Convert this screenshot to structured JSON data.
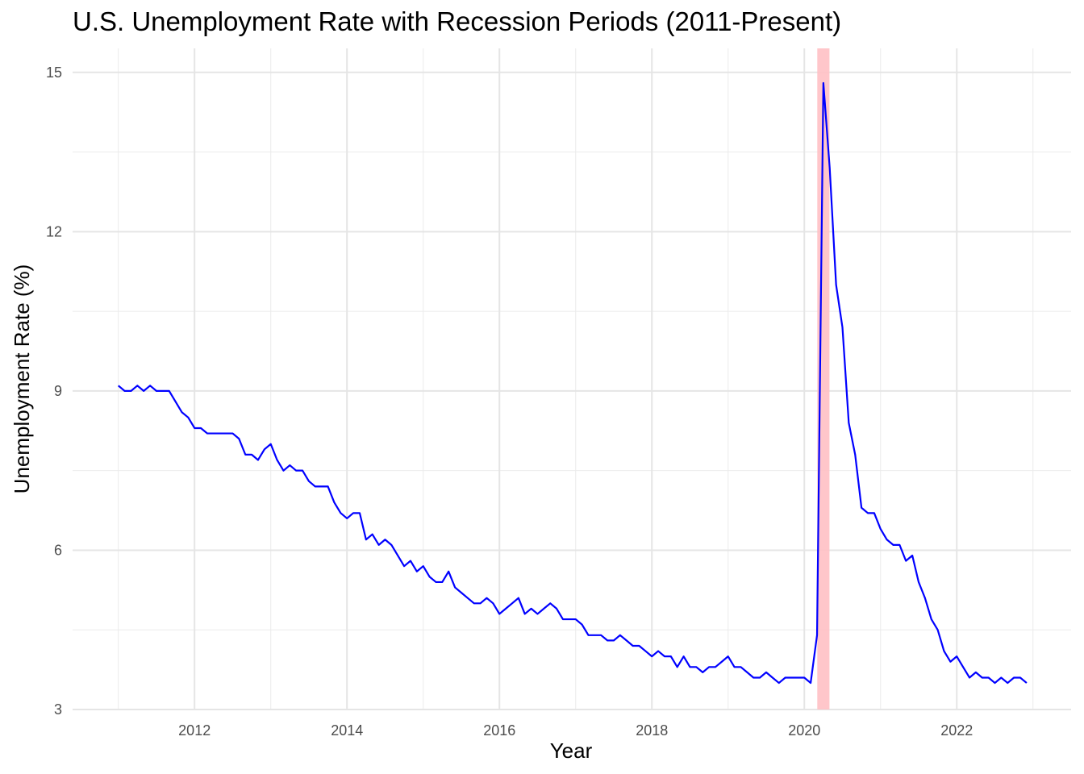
{
  "chart_data": {
    "type": "line",
    "title": "U.S. Unemployment Rate with Recession Periods (2011-Present)",
    "xlabel": "Year",
    "ylabel": "Unemployment Rate (%)",
    "xlim": [
      2010.4,
      2023.5
    ],
    "ylim": [
      3,
      15.3
    ],
    "x_ticks": [
      "2012",
      "2014",
      "2016",
      "2020",
      "2018",
      "2022"
    ],
    "y_ticks": [
      "3",
      "6",
      "9",
      "12",
      "15"
    ],
    "grid": true,
    "line_color": "#0000ff",
    "recession_color": "#ffc0c4",
    "recession_periods": [
      {
        "start": 2020.17,
        "end": 2020.33
      }
    ],
    "series": [
      {
        "x": [
          2011.0,
          2011.083,
          2011.167,
          2011.25,
          2011.333,
          2011.417,
          2011.5,
          2011.583,
          2011.667,
          2011.75,
          2011.833,
          2011.917,
          2012.0,
          2012.083,
          2012.167,
          2012.25,
          2012.333,
          2012.417,
          2012.5,
          2012.583,
          2012.667,
          2012.75,
          2012.833,
          2012.917,
          2013.0,
          2013.083,
          2013.167,
          2013.25,
          2013.333,
          2013.417,
          2013.5,
          2013.583,
          2013.667,
          2013.75,
          2013.833,
          2013.917,
          2014.0,
          2014.083,
          2014.167,
          2014.25,
          2014.333,
          2014.417,
          2014.5,
          2014.583,
          2014.667,
          2014.75,
          2014.833,
          2014.917,
          2015.0,
          2015.083,
          2015.167,
          2015.25,
          2015.333,
          2015.417,
          2015.5,
          2015.583,
          2015.667,
          2015.75,
          2015.833,
          2015.917,
          2016.0,
          2016.083,
          2016.167,
          2016.25,
          2016.333,
          2016.417,
          2016.5,
          2016.583,
          2016.667,
          2016.75,
          2016.833,
          2016.917,
          2017.0,
          2017.083,
          2017.167,
          2017.25,
          2017.333,
          2017.417,
          2017.5,
          2017.583,
          2017.667,
          2017.75,
          2017.833,
          2017.917,
          2018.0,
          2018.083,
          2018.167,
          2018.25,
          2018.333,
          2018.417,
          2018.5,
          2018.583,
          2018.667,
          2018.75,
          2018.833,
          2018.917,
          2019.0,
          2019.083,
          2019.167,
          2019.25,
          2019.333,
          2019.417,
          2019.5,
          2019.583,
          2019.667,
          2019.75,
          2019.833,
          2019.917,
          2020.0,
          2020.083,
          2020.167,
          2020.25,
          2020.333,
          2020.417,
          2020.5,
          2020.583,
          2020.667,
          2020.75,
          2020.833,
          2020.917,
          2021.0,
          2021.083,
          2021.167,
          2021.25,
          2021.333,
          2021.417,
          2021.5,
          2021.583,
          2021.667,
          2021.75,
          2021.833,
          2021.917,
          2022.0,
          2022.083,
          2022.167,
          2022.25,
          2022.333,
          2022.417,
          2022.5,
          2022.583,
          2022.667,
          2022.75,
          2022.833,
          2022.917
        ],
        "y": [
          9.1,
          9.0,
          9.0,
          9.1,
          9.0,
          9.1,
          9.0,
          9.0,
          9.0,
          8.8,
          8.6,
          8.5,
          8.3,
          8.3,
          8.2,
          8.2,
          8.2,
          8.2,
          8.2,
          8.1,
          7.8,
          7.8,
          7.7,
          7.9,
          8.0,
          7.7,
          7.5,
          7.6,
          7.5,
          7.5,
          7.3,
          7.2,
          7.2,
          7.2,
          6.9,
          6.7,
          6.6,
          6.7,
          6.7,
          6.2,
          6.3,
          6.1,
          6.2,
          6.1,
          5.9,
          5.7,
          5.8,
          5.6,
          5.7,
          5.5,
          5.4,
          5.4,
          5.6,
          5.3,
          5.2,
          5.1,
          5.0,
          5.0,
          5.1,
          5.0,
          4.8,
          4.9,
          5.0,
          5.1,
          4.8,
          4.9,
          4.8,
          4.9,
          5.0,
          4.9,
          4.7,
          4.7,
          4.7,
          4.6,
          4.4,
          4.4,
          4.4,
          4.3,
          4.3,
          4.4,
          4.3,
          4.2,
          4.2,
          4.1,
          4.0,
          4.1,
          4.0,
          4.0,
          3.8,
          4.0,
          3.8,
          3.8,
          3.7,
          3.8,
          3.8,
          3.9,
          4.0,
          3.8,
          3.8,
          3.7,
          3.6,
          3.6,
          3.7,
          3.6,
          3.5,
          3.6,
          3.6,
          3.6,
          3.6,
          3.5,
          4.4,
          14.8,
          13.2,
          11.0,
          10.2,
          8.4,
          7.8,
          6.8,
          6.7,
          6.7,
          6.4,
          6.2,
          6.1,
          6.1,
          5.8,
          5.9,
          5.4,
          5.1,
          4.7,
          4.5,
          4.1,
          3.9,
          4.0,
          3.8,
          3.6,
          3.7,
          3.6,
          3.6,
          3.5,
          3.6,
          3.5,
          3.6,
          3.6,
          3.5
        ]
      }
    ]
  }
}
